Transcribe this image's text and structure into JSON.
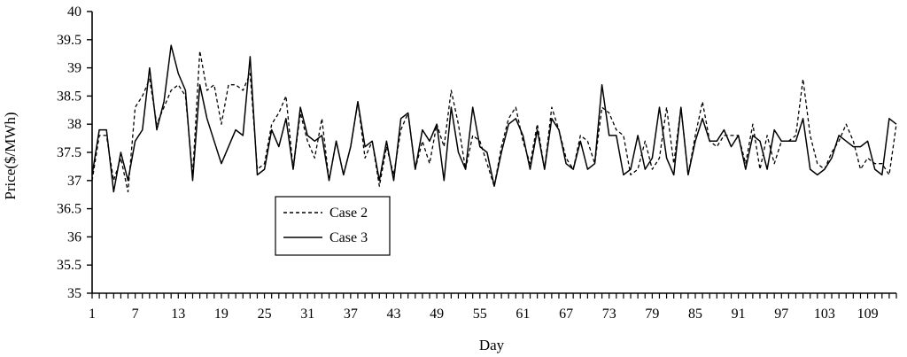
{
  "chart_data": {
    "type": "line",
    "title": "",
    "xlabel": "Day",
    "ylabel": "Price($/MWh)",
    "ylim": [
      35,
      40
    ],
    "yticks": [
      35,
      35.5,
      36,
      36.5,
      37,
      37.5,
      38,
      38.5,
      39,
      39.5,
      40
    ],
    "ytick_labels": [
      "35",
      "35.5",
      "36",
      "36.5",
      "37",
      "37.5",
      "38",
      "38.5",
      "39",
      "39.5",
      "40"
    ],
    "xlim": [
      1,
      113
    ],
    "xticks": [
      1,
      7,
      13,
      19,
      25,
      31,
      37,
      43,
      49,
      55,
      61,
      67,
      73,
      79,
      85,
      91,
      97,
      103,
      109
    ],
    "xtick_labels": [
      "1",
      "7",
      "13",
      "19",
      "25",
      "31",
      "37",
      "43",
      "49",
      "55",
      "61",
      "67",
      "73",
      "79",
      "85",
      "91",
      "97",
      "103",
      "109"
    ],
    "grid": false,
    "legend_position": "lower-left-inside",
    "x": [
      1,
      2,
      3,
      4,
      5,
      6,
      7,
      8,
      9,
      10,
      11,
      12,
      13,
      14,
      15,
      16,
      17,
      18,
      19,
      20,
      21,
      22,
      23,
      24,
      25,
      26,
      27,
      28,
      29,
      30,
      31,
      32,
      33,
      34,
      35,
      36,
      37,
      38,
      39,
      40,
      41,
      42,
      43,
      44,
      45,
      46,
      47,
      48,
      49,
      50,
      51,
      52,
      53,
      54,
      55,
      56,
      57,
      58,
      59,
      60,
      61,
      62,
      63,
      64,
      65,
      66,
      67,
      68,
      69,
      70,
      71,
      72,
      73,
      74,
      75,
      76,
      77,
      78,
      79,
      80,
      81,
      82,
      83,
      84,
      85,
      86,
      87,
      88,
      89,
      90,
      91,
      92,
      93,
      94,
      95,
      96,
      97,
      98,
      99,
      100,
      101,
      102,
      103,
      104,
      105,
      106,
      107,
      108,
      109,
      110,
      111,
      112,
      113
    ],
    "series": [
      {
        "name": "Case 2",
        "style": "dashed",
        "color": "#000000",
        "values": [
          37.0,
          37.8,
          37.8,
          37.0,
          37.4,
          36.8,
          38.3,
          38.5,
          38.8,
          38.0,
          38.3,
          38.6,
          38.7,
          38.5,
          37.1,
          39.3,
          38.6,
          38.7,
          38.0,
          38.7,
          38.7,
          38.6,
          38.9,
          37.2,
          37.3,
          38.0,
          38.2,
          38.5,
          37.2,
          38.2,
          37.7,
          37.4,
          38.1,
          37.0,
          37.7,
          37.1,
          37.6,
          38.4,
          37.4,
          37.7,
          36.9,
          37.6,
          37.1,
          37.9,
          38.2,
          37.2,
          37.7,
          37.3,
          38.0,
          37.6,
          38.6,
          38.0,
          37.2,
          37.8,
          37.7,
          37.3,
          36.9,
          37.6,
          38.1,
          38.3,
          37.7,
          37.3,
          38.0,
          37.2,
          38.3,
          37.9,
          37.4,
          37.2,
          37.8,
          37.7,
          37.3,
          38.3,
          38.2,
          37.9,
          37.8,
          37.1,
          37.2,
          37.7,
          37.2,
          37.4,
          38.3,
          37.3,
          38.3,
          37.1,
          37.8,
          38.4,
          37.7,
          37.6,
          37.8,
          37.8,
          37.8,
          37.3,
          38.0,
          37.2,
          37.8,
          37.3,
          37.7,
          37.7,
          37.8,
          38.8,
          37.8,
          37.3,
          37.2,
          37.5,
          37.7,
          38.0,
          37.7,
          37.2,
          37.4,
          37.3,
          37.3,
          37.1,
          38.0
        ]
      },
      {
        "name": "Case 3",
        "style": "solid",
        "color": "#000000",
        "values": [
          37.1,
          37.9,
          37.9,
          36.8,
          37.5,
          37.0,
          37.7,
          37.9,
          39.0,
          37.9,
          38.4,
          39.4,
          38.9,
          38.6,
          37.0,
          38.7,
          38.1,
          37.7,
          37.3,
          37.6,
          37.9,
          37.8,
          39.2,
          37.1,
          37.2,
          37.9,
          37.6,
          38.1,
          37.2,
          38.3,
          37.8,
          37.7,
          37.8,
          37.0,
          37.7,
          37.1,
          37.6,
          38.4,
          37.6,
          37.7,
          37.0,
          37.7,
          37.0,
          38.1,
          38.2,
          37.2,
          37.9,
          37.7,
          38.0,
          37.0,
          38.3,
          37.5,
          37.2,
          38.3,
          37.6,
          37.5,
          36.9,
          37.5,
          38.0,
          38.1,
          37.8,
          37.2,
          37.9,
          37.2,
          38.1,
          37.9,
          37.3,
          37.2,
          37.7,
          37.2,
          37.3,
          38.7,
          37.8,
          37.8,
          37.1,
          37.2,
          37.8,
          37.2,
          37.4,
          38.3,
          37.4,
          37.1,
          38.3,
          37.1,
          37.7,
          38.1,
          37.7,
          37.7,
          37.9,
          37.6,
          37.8,
          37.2,
          37.8,
          37.7,
          37.2,
          37.9,
          37.7,
          37.7,
          37.7,
          38.1,
          37.2,
          37.1,
          37.2,
          37.4,
          37.8,
          37.7,
          37.6,
          37.6,
          37.7,
          37.2,
          37.1,
          38.1,
          38.0
        ]
      }
    ]
  }
}
